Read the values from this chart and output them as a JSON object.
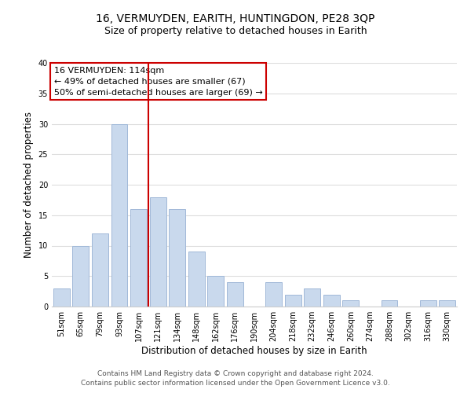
{
  "title": "16, VERMUYDEN, EARITH, HUNTINGDON, PE28 3QP",
  "subtitle": "Size of property relative to detached houses in Earith",
  "xlabel": "Distribution of detached houses by size in Earith",
  "ylabel": "Number of detached properties",
  "categories": [
    "51sqm",
    "65sqm",
    "79sqm",
    "93sqm",
    "107sqm",
    "121sqm",
    "134sqm",
    "148sqm",
    "162sqm",
    "176sqm",
    "190sqm",
    "204sqm",
    "218sqm",
    "232sqm",
    "246sqm",
    "260sqm",
    "274sqm",
    "288sqm",
    "302sqm",
    "316sqm",
    "330sqm"
  ],
  "values": [
    3,
    10,
    12,
    30,
    16,
    18,
    16,
    9,
    5,
    4,
    0,
    4,
    2,
    3,
    2,
    1,
    0,
    1,
    0,
    1,
    1
  ],
  "bar_color": "#c9d9ed",
  "bar_edge_color": "#a0b8d8",
  "vline_x_index": 5,
  "vline_color": "#cc0000",
  "ylim": [
    0,
    40
  ],
  "yticks": [
    0,
    5,
    10,
    15,
    20,
    25,
    30,
    35,
    40
  ],
  "annotation_title": "16 VERMUYDEN: 114sqm",
  "annotation_line1": "← 49% of detached houses are smaller (67)",
  "annotation_line2": "50% of semi-detached houses are larger (69) →",
  "annotation_box_color": "#ffffff",
  "annotation_box_edge": "#cc0000",
  "footer_line1": "Contains HM Land Registry data © Crown copyright and database right 2024.",
  "footer_line2": "Contains public sector information licensed under the Open Government Licence v3.0.",
  "background_color": "#ffffff",
  "grid_color": "#dddddd",
  "title_fontsize": 10,
  "subtitle_fontsize": 9,
  "axis_label_fontsize": 8.5,
  "tick_fontsize": 7,
  "footer_fontsize": 6.5,
  "annotation_fontsize": 8
}
